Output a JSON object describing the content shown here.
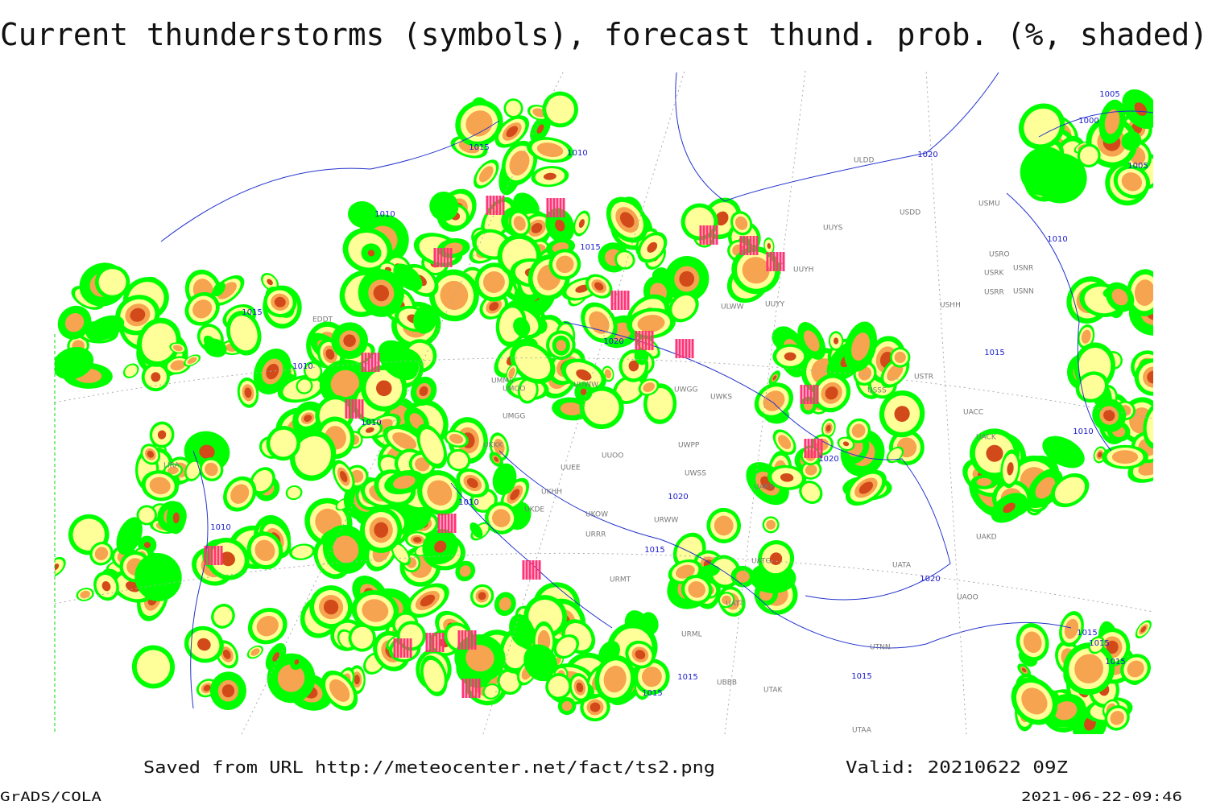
{
  "header": {
    "title": "Current thunderstorms (symbols), forecast thund. prob. (%, shaded)"
  },
  "isobar_labels": [
    "1015",
    "1010",
    "1010",
    "1015",
    "1020",
    "1005",
    "1000",
    "1005",
    "1010",
    "1015",
    "1010",
    "1010",
    "1020",
    "1015",
    "1010",
    "1020",
    "1010",
    "1010",
    "1020",
    "1015",
    "1020",
    "1015",
    "1015",
    "1015",
    "1015",
    "1015",
    "1015"
  ],
  "station_labels": [
    "ULDD",
    "USDD",
    "USMU",
    "UUYS",
    "UUYH",
    "USRO",
    "USNR",
    "USRK",
    "USRR",
    "USNN",
    "USHH",
    "UUYY",
    "ULWW",
    "UMMS",
    "UMOO",
    "UMGG",
    "UUWW",
    "UWGG",
    "UWKS",
    "UWPP",
    "USTR",
    "USSS",
    "UUOO",
    "UUEE",
    "UKHH",
    "UKDE",
    "UKOW",
    "URRR",
    "UWSS",
    "UARR",
    "UAKD",
    "UATG",
    "UATA",
    "UAOO",
    "UATT",
    "UTNN",
    "URML",
    "UBBB",
    "UTAK",
    "UTAA",
    "URMT",
    "URWW",
    "UKKK",
    "LIRA",
    "EDDT",
    "UACC",
    "UACK"
  ],
  "footer": {
    "saved": "Saved from URL http://meteocenter.net/fact/ts2.png",
    "valid": "Valid: 20210622 09Z",
    "credit": "GrADS/COLA",
    "timestamp": "2021-06-22-09:46"
  }
}
